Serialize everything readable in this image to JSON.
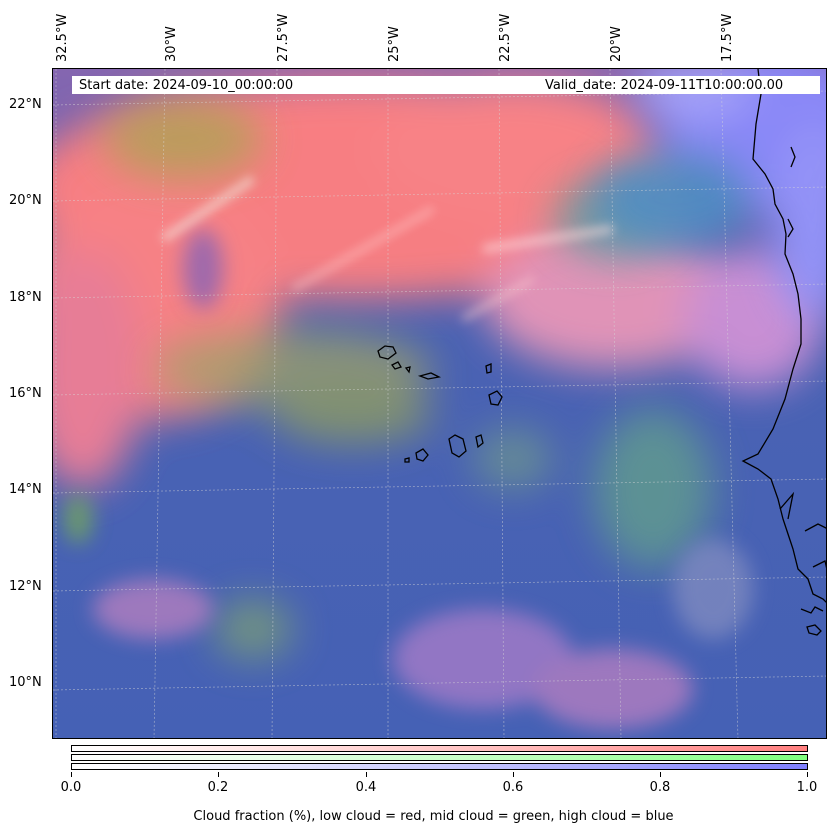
{
  "map": {
    "start_date": "Start date: 2024-09-10_00:00:00",
    "valid_date": "Valid_date: 2024-09-11T10:00:00.00",
    "longitude_labels": [
      "32.5°W",
      "30°W",
      "27.5°W",
      "25°W",
      "22.5°W",
      "20°W",
      "17.5°W"
    ],
    "latitude_labels": [
      "22°N",
      "20°N",
      "18°N",
      "16°N",
      "14°N",
      "12°N",
      "10°N"
    ],
    "extent": {
      "lon_min": -33.0,
      "lon_max": -16.2,
      "lat_min": 8.9,
      "lat_max": 22.8
    },
    "layers": [
      "low cloud = red",
      "mid cloud = green",
      "high cloud = blue"
    ],
    "colors": {
      "low": "#ff7f7f",
      "mid": "#7fff7f",
      "high": "#7f7fff",
      "background": "#4561b5"
    }
  },
  "colorbar": {
    "ticks": [
      "0.0",
      "0.2",
      "0.4",
      "0.6",
      "0.8",
      "1.0"
    ],
    "range": [
      0.0,
      1.0
    ],
    "label": "Cloud fraction (%), low cloud = red, mid cloud = green, high cloud = blue"
  }
}
